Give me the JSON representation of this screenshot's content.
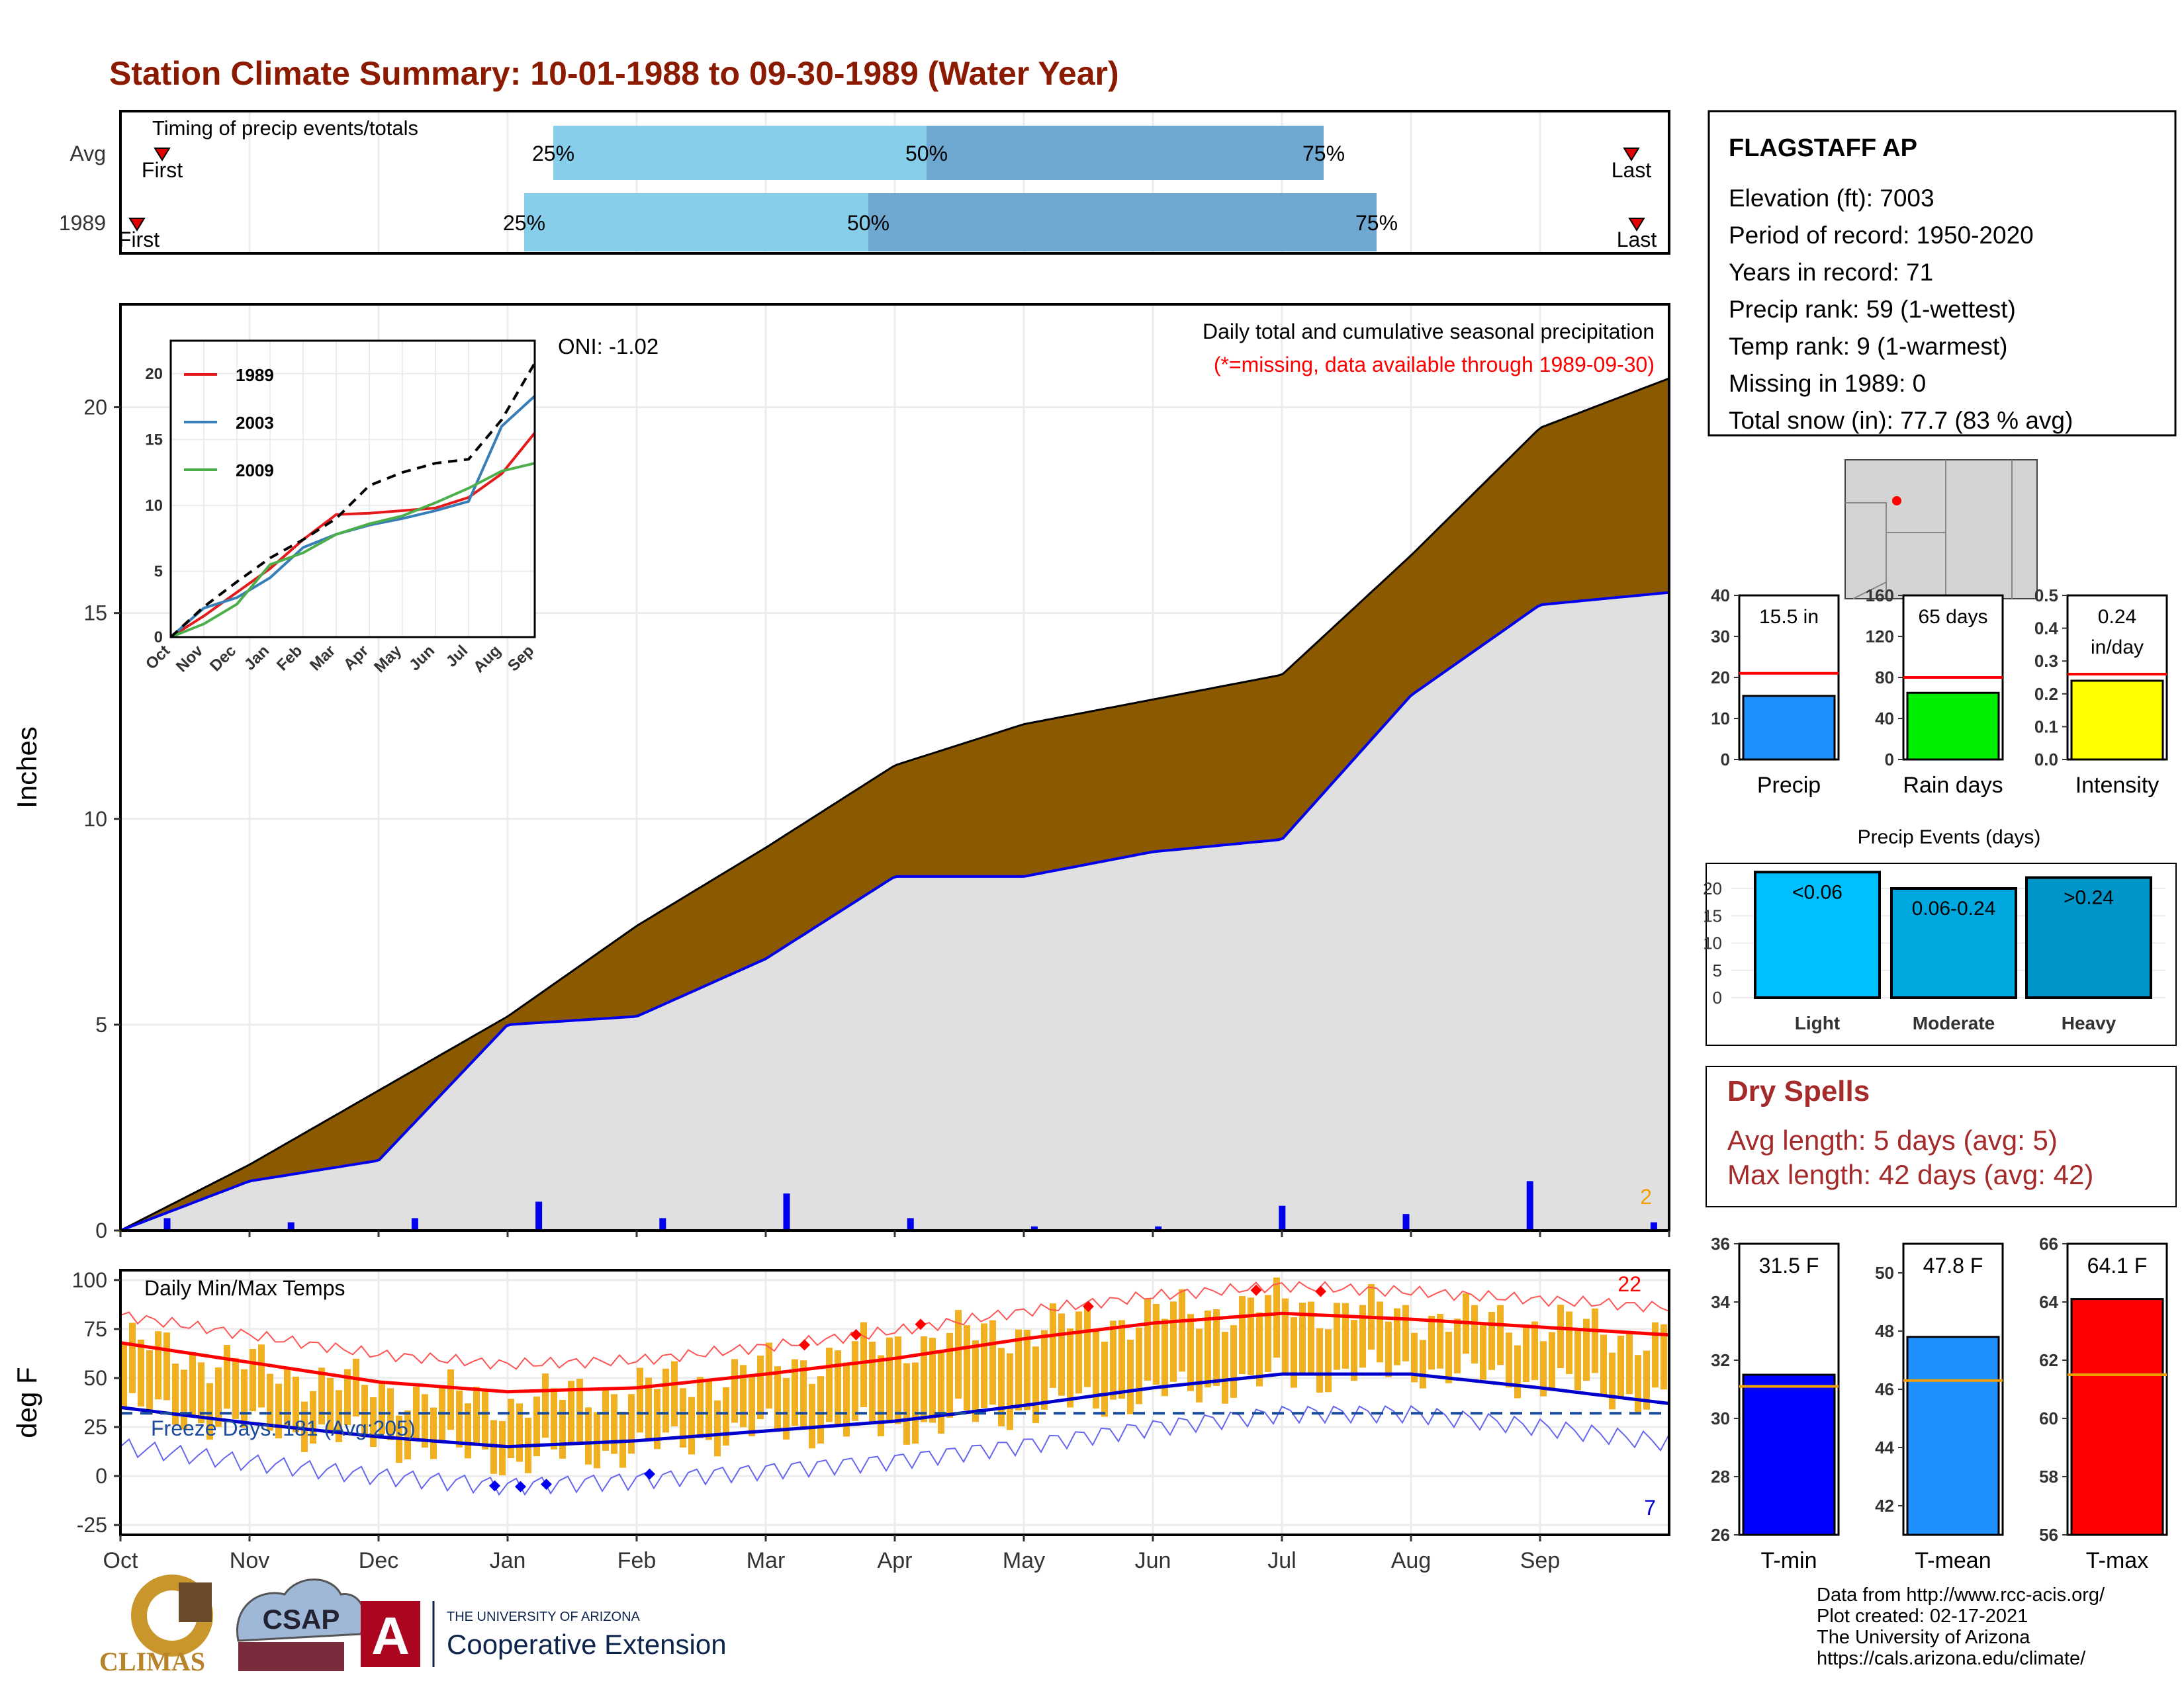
{
  "title": "Station Climate Summary: 10-01-1988 to 09-30-1989 (Water Year)",
  "station": {
    "name": "FLAGSTAFF AP",
    "lines": [
      "Elevation (ft): 7003",
      "Period of record: 1950-2020",
      "Years in record: 71",
      "Precip rank: 59 (1-wettest)",
      "Temp rank: 9 (1-warmest)",
      "Missing in 1989: 0",
      "Total snow (in): 77.7 (83 % avg)"
    ]
  },
  "colors": {
    "title": "#8b1a00",
    "brown": "#8b5a00",
    "gray_fill": "#e0e0e0",
    "blue_line": "#0000ee",
    "light_blue": "#87ceeb",
    "steel_blue": "#6fa8d0",
    "orange_temp": "#f0b020",
    "red": "#ff0000",
    "green": "#1e8c1e",
    "dry_spell_text": "#a52a2a"
  },
  "timing": {
    "label": "Timing of precip events/totals",
    "rows": [
      "Avg",
      "1989"
    ],
    "pct_labels": [
      "25%",
      "50%",
      "75%"
    ],
    "first_label": "First",
    "last_label": "Last"
  },
  "main_chart": {
    "ylabel": "Inches",
    "annotation": "Daily total and cumulative seasonal precipitation",
    "missing_note": "(*=missing, data available through 1989-09-30)",
    "oni": "ONI: -1.02",
    "corner_count": "2",
    "months": [
      "Oct",
      "Nov",
      "Dec",
      "Jan",
      "Feb",
      "Mar",
      "Apr",
      "May",
      "Jun",
      "Jul",
      "Aug",
      "Sep"
    ],
    "yticks": [
      "0",
      "5",
      "10",
      "15",
      "20"
    ]
  },
  "inset": {
    "legend": [
      "1989",
      "2003",
      "2009"
    ],
    "legend_colors": [
      "#e41a1c",
      "#377eb8",
      "#4daf4a"
    ],
    "yticks": [
      "0",
      "5",
      "10",
      "15",
      "20"
    ],
    "months": [
      "Oct",
      "Nov",
      "Dec",
      "Jan",
      "Feb",
      "Mar",
      "Apr",
      "May",
      "Jun",
      "Jul",
      "Aug",
      "Sep"
    ]
  },
  "temp_chart": {
    "ylabel": "deg F",
    "label": "Daily Min/Max Temps",
    "freeze_label": "Freeze Days: 181 (Avg:205)",
    "hot_count": "22",
    "cold_count": "7",
    "yticks": [
      "-25",
      "0",
      "25",
      "50",
      "75",
      "100"
    ],
    "months": [
      "Oct",
      "Nov",
      "Dec",
      "Jan",
      "Feb",
      "Mar",
      "Apr",
      "May",
      "Jun",
      "Jul",
      "Aug",
      "Sep"
    ]
  },
  "small_bars": [
    {
      "label": "Precip",
      "value_text": "15.5 in",
      "value": 15.5,
      "avg": 21,
      "ymax": 40,
      "yticks": [
        "0",
        "10",
        "20",
        "30",
        "40"
      ],
      "color": "#1e90ff"
    },
    {
      "label": "Rain days",
      "value_text": "65 days",
      "value": 65,
      "avg": 80,
      "ymax": 160,
      "yticks": [
        "0",
        "40",
        "80",
        "120",
        "160"
      ],
      "color": "#00ee00"
    },
    {
      "label": "Intensity",
      "value_text": "0.24 in/day",
      "value": 0.24,
      "avg": 0.26,
      "ymax": 0.5,
      "yticks": [
        "0.0",
        "0.1",
        "0.2",
        "0.3",
        "0.4",
        "0.5"
      ],
      "color": "#ffff00"
    }
  ],
  "precip_events": {
    "title": "Precip Events (days)",
    "yticks": [
      "0",
      "5",
      "10",
      "15",
      "20"
    ],
    "bars": [
      {
        "label": "Light",
        "value_text": "<0.06",
        "value": 23,
        "color": "#00bfff"
      },
      {
        "label": "Moderate",
        "value_text": "0.06-0.24",
        "value": 20,
        "color": "#00a8e0"
      },
      {
        "label": "Heavy",
        "value_text": ">0.24",
        "value": 22,
        "color": "#0095c8"
      }
    ]
  },
  "dry_spells": {
    "title": "Dry Spells",
    "avg": "Avg length: 5 days (avg: 5)",
    "max": "Max length: 42 days (avg: 42)"
  },
  "temp_bars": [
    {
      "label": "T-min",
      "value_text": "31.5 F",
      "value": 31.5,
      "avg": 31.1,
      "ymin": 26,
      "ymax": 36,
      "yticks": [
        "26",
        "28",
        "30",
        "32",
        "34",
        "36"
      ],
      "color": "#0000ff"
    },
    {
      "label": "T-mean",
      "value_text": "47.8 F",
      "value": 47.8,
      "avg": 46.3,
      "ymin": 41,
      "ymax": 51,
      "yticks": [
        "42",
        "44",
        "46",
        "48",
        "50"
      ],
      "color": "#1e90ff"
    },
    {
      "label": "T-max",
      "value_text": "64.1 F",
      "value": 64.1,
      "avg": 61.5,
      "ymin": 56,
      "ymax": 66,
      "yticks": [
        "56",
        "58",
        "60",
        "62",
        "64",
        "66"
      ],
      "color": "#ff0000"
    }
  ],
  "footer": {
    "lines": [
      "Data from http://www.rcc-acis.org/",
      "Plot created: 02-17-2021",
      "The University of Arizona",
      "https://cals.arizona.edu/climate/"
    ],
    "logo_climas": "CLIMAS",
    "logo_csap": "CSAP",
    "logo_ua_top": "THE UNIVERSITY OF ARIZONA",
    "logo_ua_bottom": "Cooperative Extension"
  },
  "chart_data": [
    {
      "type": "area",
      "title": "Daily total and cumulative seasonal precipitation",
      "ylabel": "Inches",
      "ylim": [
        0,
        22.5
      ],
      "x": [
        "Oct",
        "Nov",
        "Dec",
        "Jan",
        "Feb",
        "Mar",
        "Apr",
        "May",
        "Jun",
        "Jul",
        "Aug",
        "Sep",
        "Sep-end"
      ],
      "series": [
        {
          "values": [
            0,
            1.6,
            3.4,
            5.2,
            7.4,
            9.3,
            11.3,
            12.3,
            12.9,
            13.5,
            16.4,
            19.5,
            20.7
          ]
        },
        {
          "values": [
            0,
            1.2,
            1.7,
            5.0,
            5.2,
            6.6,
            8.6,
            8.6,
            9.2,
            9.5,
            13.0,
            15.2,
            15.5
          ]
        }
      ],
      "daily_peaks_in": [
        0.3,
        0.2,
        0.3,
        0.7,
        0.3,
        0.9,
        0.3,
        0.1,
        0.1,
        0.6,
        0.4,
        1.2,
        0.2
      ]
    },
    {
      "type": "line",
      "title": "",
      "ylim": [
        0,
        20
      ],
      "x": [
        "Oct",
        "Nov",
        "Dec",
        "Jan",
        "Feb",
        "Mar",
        "Apr",
        "May",
        "Jun",
        "Jul",
        "Aug",
        "Sep"
      ],
      "series": [
        {
          "name": "1989",
          "values": [
            0,
            1.6,
            3.4,
            5.2,
            7.4,
            9.3,
            9.4,
            9.6,
            9.8,
            10.6,
            12.4,
            15.5
          ]
        },
        {
          "name": "2003",
          "values": [
            0,
            2.2,
            3.0,
            4.5,
            6.8,
            7.8,
            8.5,
            9.0,
            9.6,
            10.3,
            16.0,
            18.3
          ]
        },
        {
          "name": "2009",
          "values": [
            0,
            1.0,
            2.5,
            5.5,
            6.4,
            7.8,
            8.6,
            9.2,
            10.2,
            11.3,
            12.6,
            13.2
          ]
        },
        {
          "values": [
            0,
            2.3,
            4.2,
            6.0,
            7.4,
            9.0,
            11.5,
            12.5,
            13.2,
            13.5,
            16.5,
            20.8
          ]
        }
      ]
    },
    {
      "type": "line",
      "title": "Daily Min/Max Temps",
      "ylabel": "deg F",
      "ylim": [
        -30,
        100
      ],
      "x": [
        "Oct",
        "Nov",
        "Dec",
        "Jan",
        "Feb",
        "Mar",
        "Apr",
        "May",
        "Jun",
        "Jul",
        "Aug",
        "Sep",
        "Sep-end"
      ],
      "series": [
        {
          "values": [
            68,
            58,
            48,
            43,
            45,
            52,
            60,
            70,
            78,
            83,
            80,
            76,
            72
          ]
        },
        {
          "values": [
            35,
            27,
            20,
            15,
            18,
            23,
            28,
            36,
            45,
            52,
            52,
            45,
            37
          ]
        },
        {
          "values": [
            68,
            56,
            44,
            38,
            45,
            55,
            68,
            75,
            82,
            88,
            82,
            78,
            70
          ]
        },
        {
          "values": [
            34,
            26,
            18,
            8,
            14,
            24,
            24,
            34,
            42,
            50,
            55,
            48,
            38
          ]
        }
      ],
      "freeze_threshold": 32
    }
  ]
}
